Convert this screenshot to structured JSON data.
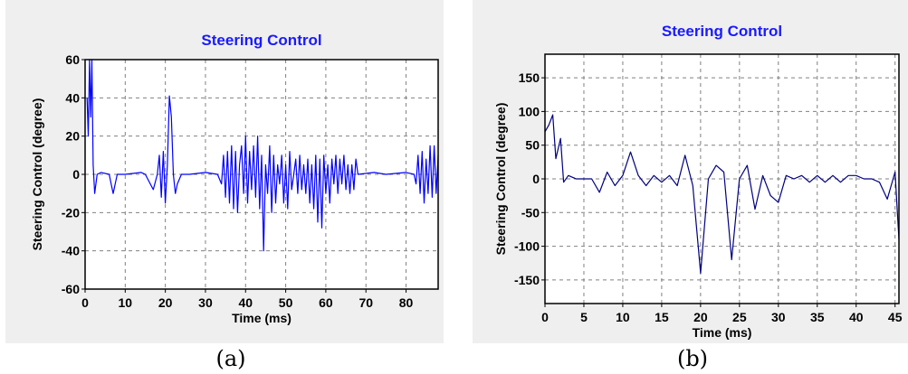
{
  "chart_data": [
    {
      "type": "line",
      "title": "Steering Control",
      "xlabel": "Time (ms)",
      "ylabel": "Steering Control (degree)",
      "xlim": [
        0,
        88
      ],
      "ylim": [
        -60,
        60
      ],
      "xticks": [
        0,
        10,
        20,
        30,
        40,
        50,
        60,
        70,
        80
      ],
      "yticks": [
        60,
        40,
        20,
        0,
        -20,
        -40,
        -60
      ],
      "grid": true,
      "line_color": "#0000ff",
      "series": [
        {
          "x": [
            0.5,
            0.8,
            1.1,
            1.4,
            1.7,
            2.0,
            2.4,
            3,
            4,
            6,
            7,
            8,
            10,
            14,
            15,
            17,
            18,
            18.5,
            19,
            19.5,
            20,
            20.5,
            21,
            21.5,
            22,
            22.5,
            23,
            24,
            26,
            30,
            33,
            34,
            34.5,
            35,
            35.5,
            36,
            36.5,
            37,
            37.5,
            38,
            38.5,
            39,
            39.5,
            40,
            40.5,
            41,
            41.5,
            42,
            42.5,
            43,
            43.5,
            44,
            44.5,
            45,
            45.5,
            46,
            46.5,
            47,
            47.5,
            48,
            48.5,
            49,
            49.5,
            50,
            50.5,
            51,
            51.5,
            52,
            52.5,
            53,
            53.5,
            54,
            54.5,
            55,
            55.5,
            56,
            56.5,
            57,
            57.5,
            58,
            58.5,
            59,
            59.5,
            60,
            60.5,
            61,
            61.5,
            62,
            62.5,
            63,
            63.5,
            64,
            64.5,
            65,
            65.5,
            66,
            66.5,
            67,
            67.5,
            68,
            72,
            75,
            80,
            82,
            82.5,
            83,
            83.5,
            84,
            84.5,
            85,
            85.5,
            86,
            86.5,
            87,
            87.5,
            88
          ],
          "values": [
            40,
            20,
            60,
            30,
            60,
            5,
            -10,
            0,
            1,
            0,
            -10,
            0,
            0,
            1,
            0,
            -8,
            0,
            10,
            -12,
            12,
            -15,
            5,
            41,
            30,
            0,
            -10,
            -5,
            0,
            0,
            1,
            0,
            -5,
            10,
            -12,
            12,
            -15,
            15,
            -18,
            12,
            -20,
            5,
            15,
            -10,
            20,
            -15,
            12,
            -8,
            15,
            -12,
            20,
            -18,
            10,
            -40,
            5,
            -10,
            15,
            -20,
            10,
            -15,
            5,
            -5,
            10,
            -15,
            5,
            -18,
            12,
            -8,
            0,
            8,
            -10,
            10,
            -8,
            5,
            -10,
            8,
            -15,
            5,
            -18,
            10,
            -25,
            8,
            -28,
            10,
            -10,
            5,
            -15,
            8,
            -5,
            10,
            -10,
            8,
            -5,
            10,
            -8,
            5,
            -10,
            5,
            -8,
            8,
            0,
            1,
            0,
            1,
            0,
            -5,
            10,
            -10,
            12,
            -15,
            8,
            -10,
            15,
            -12,
            15,
            -10,
            10
          ]
        }
      ]
    },
    {
      "type": "line",
      "title": "Steering Control",
      "xlabel": "Time (ms)",
      "ylabel": "Steering Control (degree)",
      "xlim": [
        0,
        45.5
      ],
      "ylim": [
        -185,
        185
      ],
      "xticks": [
        0,
        5,
        10,
        15,
        20,
        25,
        30,
        35,
        40,
        45
      ],
      "yticks": [
        150,
        100,
        50,
        0,
        -50,
        -100,
        -150
      ],
      "grid": true,
      "line_color": "#000080",
      "series": [
        {
          "x": [
            0,
            0.5,
            1,
            1.4,
            2,
            2.4,
            3,
            4,
            5,
            6,
            7,
            8,
            9,
            10,
            11,
            12,
            13,
            14,
            15,
            16,
            17,
            18,
            19,
            20,
            21,
            22,
            23,
            24,
            25,
            26,
            27,
            28,
            29,
            30,
            31,
            32,
            33,
            34,
            35,
            36,
            37,
            38,
            39,
            40,
            41,
            42,
            43,
            44,
            45,
            45.5
          ],
          "values": [
            70,
            80,
            95,
            30,
            60,
            -5,
            5,
            0,
            0,
            0,
            -20,
            10,
            -10,
            5,
            40,
            5,
            -10,
            5,
            -5,
            5,
            -10,
            35,
            -10,
            -140,
            0,
            20,
            10,
            -120,
            0,
            20,
            -45,
            5,
            -25,
            -35,
            5,
            0,
            5,
            -5,
            5,
            -5,
            5,
            -5,
            5,
            5,
            0,
            0,
            -5,
            -30,
            10,
            -90
          ]
        }
      ]
    }
  ],
  "captions": [
    "(a)",
    "(b)"
  ]
}
